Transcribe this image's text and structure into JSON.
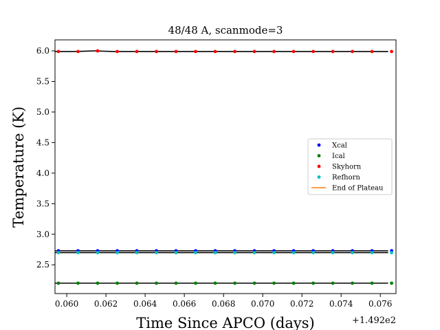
{
  "chart_data": {
    "type": "scatter",
    "title": "48/48 A, scanmode=3",
    "xlabel": "Time Since APCO (days)",
    "ylabel": "Temperature (K)",
    "x_offset_label": "+1.492e2",
    "xlim": [
      0.0594,
      0.0768
    ],
    "ylim": [
      2.03,
      6.18
    ],
    "x_ticks": [
      "0.060",
      "0.062",
      "0.064",
      "0.066",
      "0.068",
      "0.070",
      "0.072",
      "0.074",
      "0.076"
    ],
    "y_ticks": [
      "2.5",
      "3.0",
      "3.5",
      "4.0",
      "4.5",
      "5.0",
      "5.5",
      "6.0"
    ],
    "x": [
      0.0594,
      0.0604,
      0.0614,
      0.0624,
      0.0634,
      0.0644,
      0.0654,
      0.0664,
      0.0674,
      0.0684,
      0.0694,
      0.0704,
      0.0714,
      0.0724,
      0.0734,
      0.0744,
      0.0754,
      0.0764
    ],
    "series": [
      {
        "name": "Xcal",
        "color": "#0000ff",
        "marker": "dot",
        "values": [
          2.73,
          2.73,
          2.73,
          2.73,
          2.73,
          2.73,
          2.73,
          2.73,
          2.73,
          2.73,
          2.73,
          2.73,
          2.73,
          2.73,
          2.73,
          2.73,
          2.73,
          2.73
        ]
      },
      {
        "name": "Ical",
        "color": "#008000",
        "marker": "dot",
        "values": [
          2.2,
          2.2,
          2.2,
          2.2,
          2.2,
          2.2,
          2.2,
          2.2,
          2.2,
          2.2,
          2.2,
          2.2,
          2.2,
          2.2,
          2.2,
          2.2,
          2.2,
          2.2
        ]
      },
      {
        "name": "Skyhorn",
        "color": "#ff0000",
        "marker": "dot",
        "values": [
          5.99,
          5.99,
          6.0,
          5.99,
          5.99,
          5.99,
          5.99,
          5.99,
          5.99,
          5.99,
          5.99,
          5.99,
          5.99,
          5.99,
          5.99,
          5.99,
          5.99,
          5.99
        ]
      },
      {
        "name": "Refhorn",
        "color": "#00bfbf",
        "marker": "dot",
        "values": [
          2.7,
          2.7,
          2.7,
          2.7,
          2.7,
          2.7,
          2.7,
          2.7,
          2.7,
          2.7,
          2.7,
          2.7,
          2.7,
          2.7,
          2.7,
          2.7,
          2.7,
          2.7
        ]
      },
      {
        "name": "End of Plateau",
        "color": "#ff7f0e",
        "marker": "line",
        "values": []
      }
    ],
    "grid": false,
    "legend_position": "center-right"
  }
}
